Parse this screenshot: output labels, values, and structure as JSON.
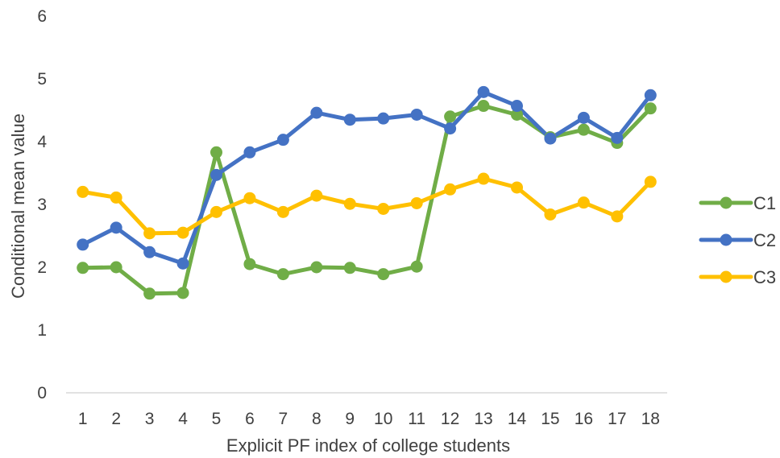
{
  "chart_data": {
    "type": "line",
    "title": "",
    "xlabel": "Explicit PF index of college students",
    "ylabel": "Conditional mean value",
    "ylim": [
      0,
      6
    ],
    "yticks": [
      "0",
      "1",
      "2",
      "3",
      "4",
      "5",
      "6"
    ],
    "grid": false,
    "legend_position": "right",
    "x": [
      "1",
      "2",
      "3",
      "4",
      "5",
      "6",
      "7",
      "8",
      "9",
      "10",
      "11",
      "12",
      "13",
      "14",
      "15",
      "16",
      "17",
      "18"
    ],
    "series": [
      {
        "name": "C1",
        "color": "#70AD47",
        "values": [
          1.99,
          2.0,
          1.58,
          1.59,
          3.83,
          2.05,
          1.89,
          2.0,
          1.99,
          1.89,
          2.01,
          4.4,
          4.57,
          4.43,
          4.07,
          4.19,
          3.98,
          4.53
        ]
      },
      {
        "name": "C2",
        "color": "#4472C4",
        "values": [
          2.36,
          2.63,
          2.24,
          2.06,
          3.47,
          3.83,
          4.03,
          4.46,
          4.35,
          4.37,
          4.43,
          4.21,
          4.79,
          4.57,
          4.05,
          4.38,
          4.06,
          4.74
        ]
      },
      {
        "name": "C3",
        "color": "#FFC000",
        "values": [
          3.2,
          3.11,
          2.54,
          2.55,
          2.88,
          3.1,
          2.88,
          3.14,
          3.01,
          2.93,
          3.02,
          3.24,
          3.41,
          3.27,
          2.84,
          3.03,
          2.81,
          3.36
        ]
      }
    ]
  }
}
